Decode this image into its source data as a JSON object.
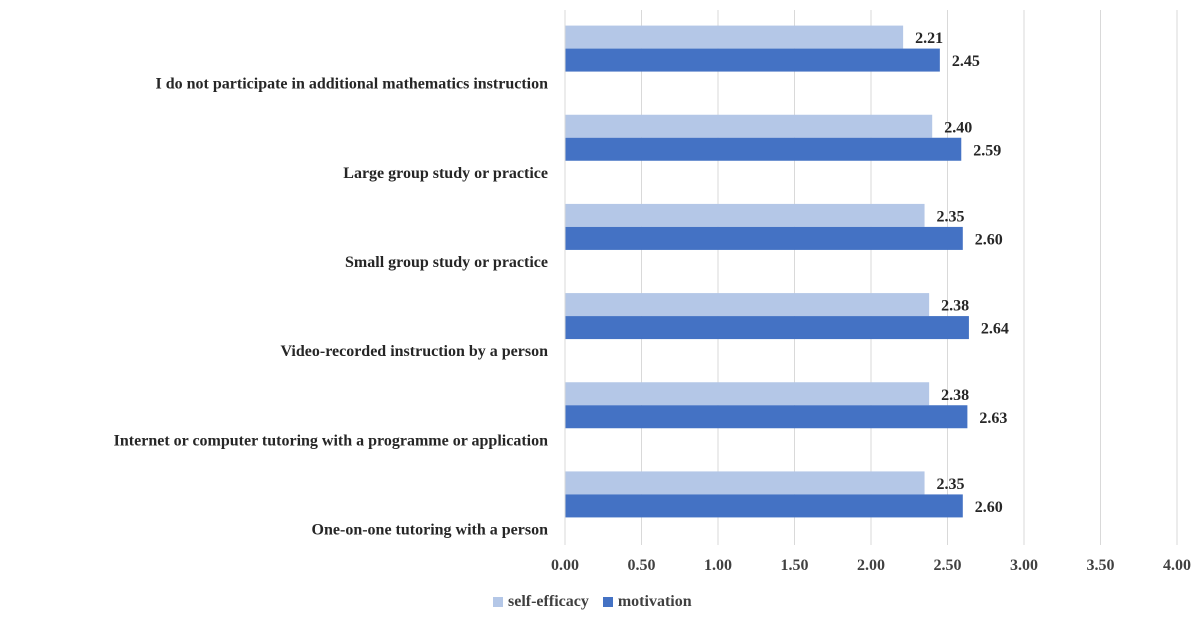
{
  "chart_data": {
    "type": "bar",
    "orientation": "horizontal",
    "categories": [
      "I do not participate in additional mathematics instruction",
      "Large group study or practice",
      "Small group study or practice",
      "Video-recorded instruction by a person",
      "Internet or computer tutoring with a programme or application",
      "One-on-one tutoring with a person"
    ],
    "series": [
      {
        "name": "self-efficacy",
        "color": "#b4c7e7",
        "values": [
          2.21,
          2.4,
          2.35,
          2.38,
          2.38,
          2.35
        ]
      },
      {
        "name": "motivation",
        "color": "#4472c4",
        "values": [
          2.45,
          2.59,
          2.6,
          2.64,
          2.63,
          2.6
        ]
      }
    ],
    "value_labels": {
      "self-efficacy": [
        "2.21",
        "2.40",
        "2.35",
        "2.38",
        "2.38",
        "2.35"
      ],
      "motivation": [
        "2.45",
        "2.59",
        "2.60",
        "2.64",
        "2.63",
        "2.60"
      ]
    },
    "xlim": [
      0,
      4
    ],
    "xticks": [
      "0.00",
      "0.50",
      "1.00",
      "1.50",
      "2.00",
      "2.50",
      "3.00",
      "3.50",
      "4.00"
    ],
    "grid": true,
    "legend_position": "bottom"
  }
}
